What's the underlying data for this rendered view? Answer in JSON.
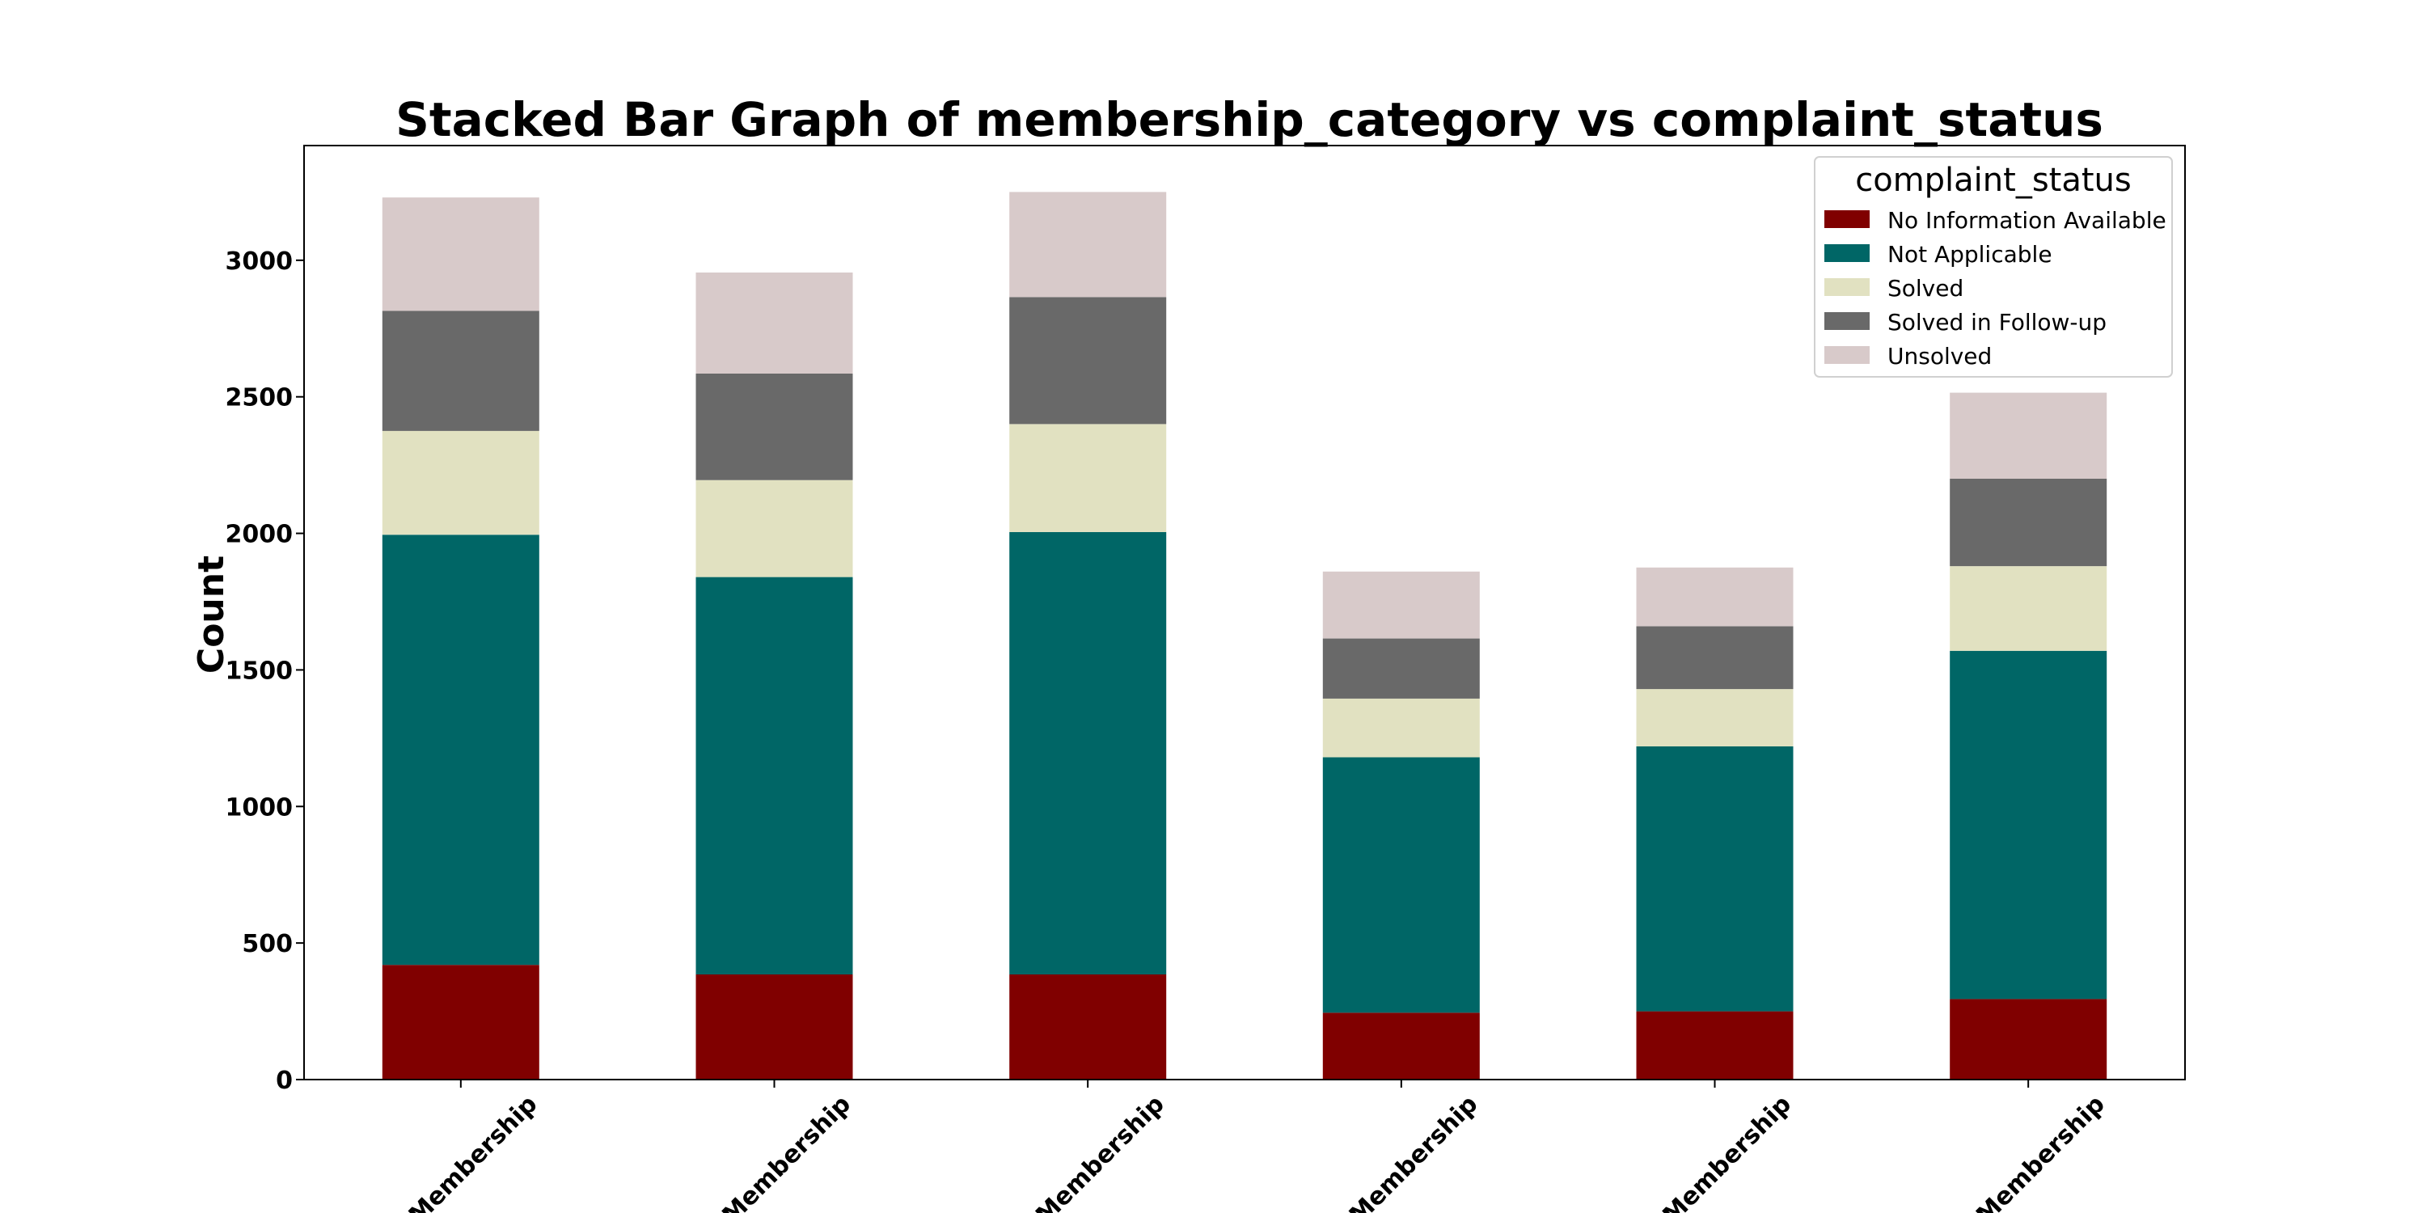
{
  "chart_data": {
    "type": "bar",
    "stacked": true,
    "title": "Stacked Bar Graph of membership_category vs complaint_status",
    "xlabel": "",
    "ylabel": "Count",
    "ylim": [
      0,
      3420
    ],
    "yticks": [
      0,
      500,
      1000,
      1500,
      2000,
      2500,
      3000
    ],
    "categories": [
      "… Membership",
      "…l Membership",
      "…e Membership",
      "…e Membership",
      "…n Membership",
      "…r Membership"
    ],
    "series": [
      {
        "name": "No Information Available",
        "color": "#800000",
        "values": [
          420,
          385,
          385,
          245,
          250,
          295
        ]
      },
      {
        "name": "Not Applicable",
        "color": "#006666",
        "values": [
          1575,
          1455,
          1620,
          935,
          970,
          1275
        ]
      },
      {
        "name": "Solved",
        "color": "#e1e1c1",
        "values": [
          380,
          355,
          395,
          215,
          210,
          310
        ]
      },
      {
        "name": "Solved in Follow-up",
        "color": "#696969",
        "values": [
          440,
          390,
          465,
          220,
          230,
          320
        ]
      },
      {
        "name": "Unsolved",
        "color": "#d8caca",
        "values": [
          415,
          370,
          385,
          245,
          215,
          315
        ]
      }
    ],
    "grid": false,
    "legend": {
      "title": "complaint_status",
      "placement": "top-right"
    }
  }
}
